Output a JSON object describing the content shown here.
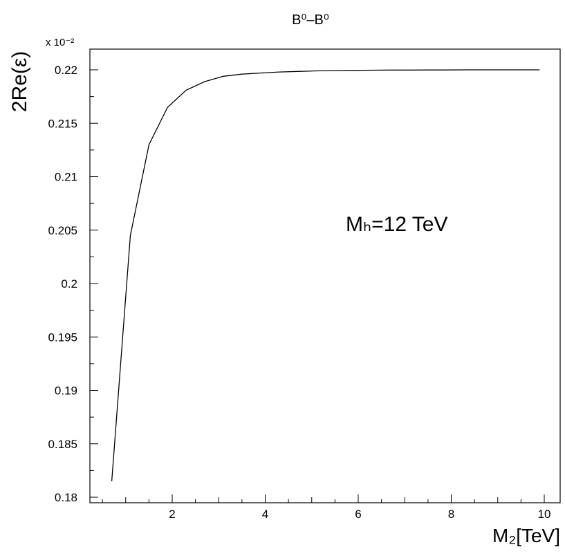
{
  "chart_data": {
    "type": "line",
    "title": "B⁰–B⁰",
    "xlabel": "M₂[TeV]",
    "ylabel": "2Re(ε)",
    "y_multiplier": "x 10⁻²",
    "annotation": "Mₕ=12 TeV",
    "xlim": [
      0,
      10.3
    ],
    "ylim": [
      0.1795,
      0.2225
    ],
    "x_ticks": [
      2,
      4,
      6,
      8,
      10
    ],
    "x_tick_labels": [
      "2",
      "4",
      "6",
      "8",
      "10"
    ],
    "y_ticks": [
      0.18,
      0.185,
      0.19,
      0.195,
      0.2,
      0.205,
      0.21,
      0.215,
      0.22
    ],
    "y_tick_labels": [
      "0.18",
      "0.185",
      "0.19",
      "0.195",
      "0.2",
      "0.205",
      "0.21",
      "0.215",
      "0.22"
    ],
    "grid": false,
    "series": [
      {
        "x": [
          0.7,
          1.1,
          1.5,
          1.9,
          2.3,
          2.7,
          3.1,
          3.5,
          3.9,
          4.3,
          4.7,
          5.1,
          5.5,
          5.9,
          6.3,
          6.7,
          7.1,
          7.5,
          7.9,
          8.3,
          8.7,
          9.1,
          9.5,
          9.9
        ],
        "values": [
          0.1815,
          0.2045,
          0.213,
          0.2165,
          0.2181,
          0.2189,
          0.2194,
          0.2196,
          0.2197,
          0.2198,
          0.21985,
          0.2199,
          0.21993,
          0.21995,
          0.21997,
          0.21998,
          0.21998,
          0.21999,
          0.21999,
          0.22,
          0.22,
          0.22,
          0.22,
          0.22
        ]
      }
    ]
  }
}
